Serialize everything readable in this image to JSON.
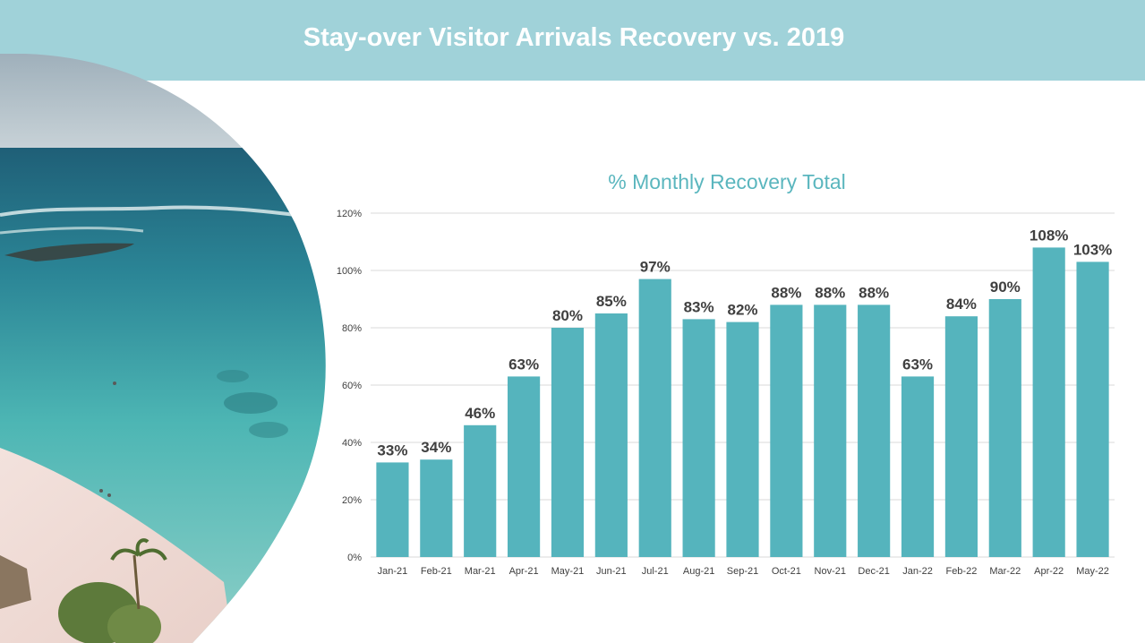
{
  "header": {
    "title": "Stay-over Visitor Arrivals Recovery vs. 2019"
  },
  "photo": {
    "subject": "beach-aerial-photo"
  },
  "colors": {
    "header_bg": "#a0d2d9",
    "bar": "#55b4bd",
    "chart_title": "#5ab6be",
    "label": "#404040",
    "grid": "#d9d9d9"
  },
  "chart_data": {
    "type": "bar",
    "title": "% Monthly Recovery Total",
    "xlabel": "",
    "ylabel": "",
    "categories": [
      "Jan-21",
      "Feb-21",
      "Mar-21",
      "Apr-21",
      "May-21",
      "Jun-21",
      "Jul-21",
      "Aug-21",
      "Sep-21",
      "Oct-21",
      "Nov-21",
      "Dec-21",
      "Jan-22",
      "Feb-22",
      "Mar-22",
      "Apr-22",
      "May-22"
    ],
    "values": [
      33,
      34,
      46,
      63,
      80,
      85,
      97,
      83,
      82,
      88,
      88,
      88,
      63,
      84,
      90,
      108,
      103
    ],
    "data_labels": [
      "33%",
      "34%",
      "46%",
      "63%",
      "80%",
      "85%",
      "97%",
      "83%",
      "82%",
      "88%",
      "88%",
      "88%",
      "63%",
      "84%",
      "90%",
      "108%",
      "103%"
    ],
    "ylim": [
      0,
      120
    ],
    "yticks": [
      "0%",
      "20%",
      "40%",
      "60%",
      "80%",
      "100%",
      "120%"
    ],
    "grid": true,
    "legend": "none"
  }
}
